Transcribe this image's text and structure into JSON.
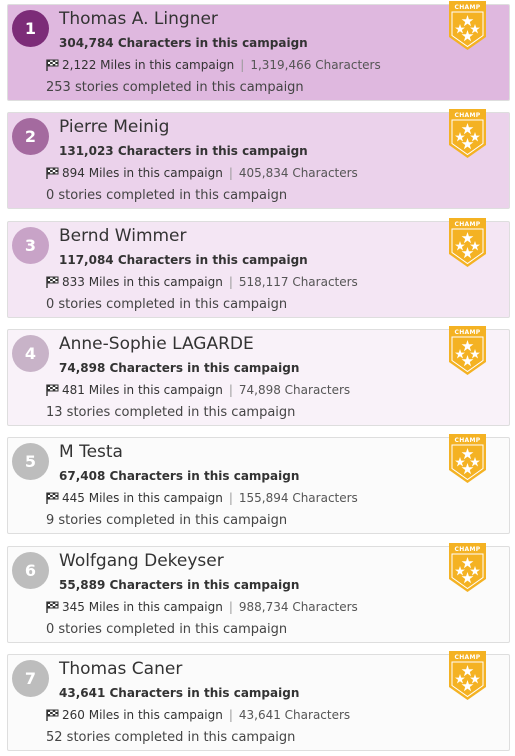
{
  "badge_label": "CHAMP",
  "badge_color": "#f4b223",
  "rows": [
    {
      "rank": "1",
      "name": "Thomas A. Lingner",
      "characters": "304,784 Characters in this campaign",
      "miles": "2,122 Miles in this campaign",
      "total_characters": "1,319,466 Characters",
      "stories": "253 stories completed in this campaign",
      "bg": "#dfb8df",
      "rank_color": "#7c2c78"
    },
    {
      "rank": "2",
      "name": "Pierre Meinig",
      "characters": "131,023 Characters in this campaign",
      "miles": "894 Miles in this campaign",
      "total_characters": "405,834 Characters",
      "stories": "0 stories completed in this campaign",
      "bg": "#ebd2eb",
      "rank_color": "#a46a9f"
    },
    {
      "rank": "3",
      "name": "Bernd Wimmer",
      "characters": "117,084 Characters in this campaign",
      "miles": "833 Miles in this campaign",
      "total_characters": "518,117 Characters",
      "stories": "0 stories completed in this campaign",
      "bg": "#f4e6f4",
      "rank_color": "#c8a3c7"
    },
    {
      "rank": "4",
      "name": "Anne-Sophie LAGARDE",
      "characters": "74,898 Characters in this campaign",
      "miles": "481 Miles in this campaign",
      "total_characters": "74,898 Characters",
      "stories": "13 stories completed in this campaign",
      "bg": "#f9f2f9",
      "rank_color": "#c8b3c8"
    },
    {
      "rank": "5",
      "name": "M Testa",
      "characters": "67,408 Characters in this campaign",
      "miles": "445 Miles in this campaign",
      "total_characters": "155,894 Characters",
      "stories": "9 stories completed in this campaign",
      "bg": "#fbfbfb",
      "rank_color": "#bdbdbd"
    },
    {
      "rank": "6",
      "name": "Wolfgang Dekeyser",
      "characters": "55,889 Characters in this campaign",
      "miles": "345 Miles in this campaign",
      "total_characters": "988,734 Characters",
      "stories": "0 stories completed in this campaign",
      "bg": "#fbfbfb",
      "rank_color": "#bdbdbd"
    },
    {
      "rank": "7",
      "name": "Thomas Caner",
      "characters": "43,641 Characters in this campaign",
      "miles": "260 Miles in this campaign",
      "total_characters": "43,641 Characters",
      "stories": "52 stories completed in this campaign",
      "bg": "#fbfbfb",
      "rank_color": "#bdbdbd"
    }
  ]
}
